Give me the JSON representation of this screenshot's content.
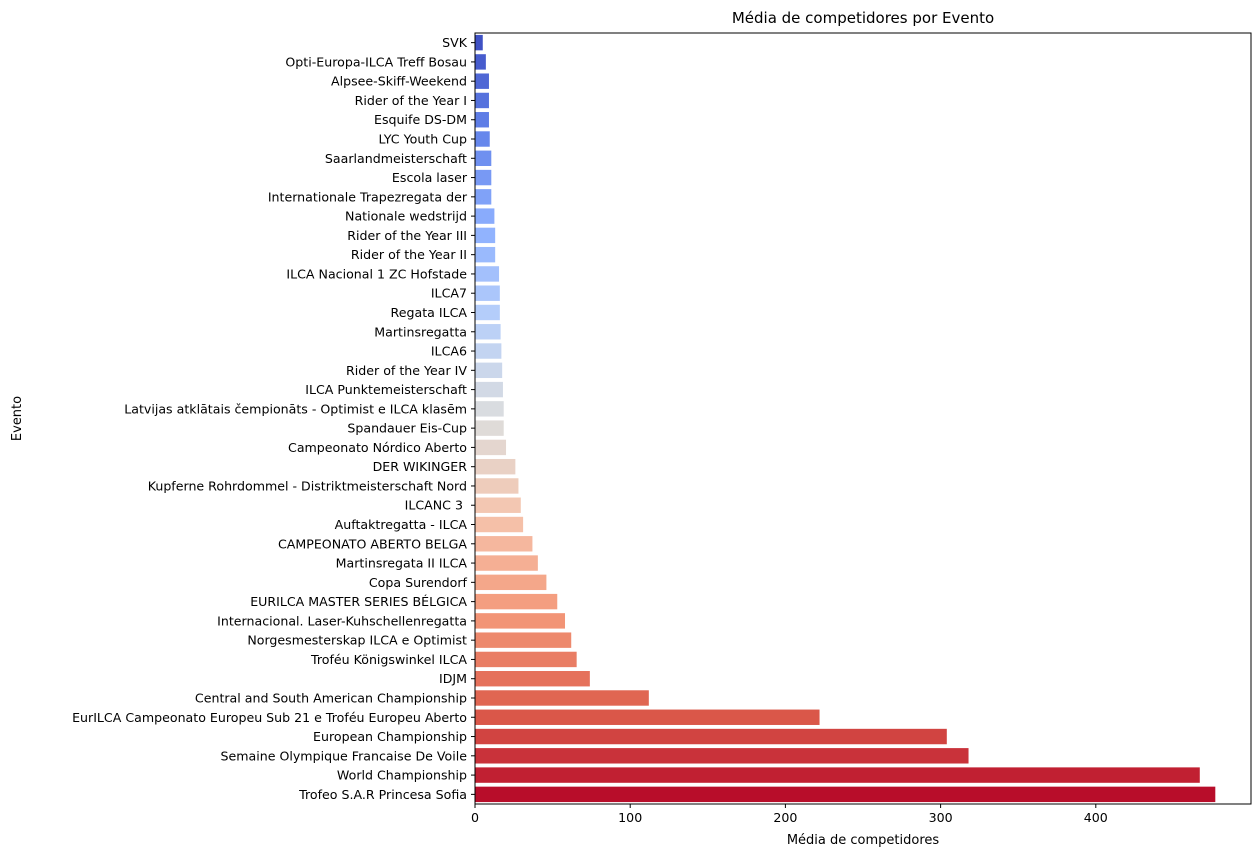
{
  "chart_data": {
    "type": "bar",
    "orientation": "horizontal",
    "title": "Média de competidores por Evento",
    "xlabel": "Média de competidores",
    "ylabel": "Evento",
    "xlim": [
      0,
      500
    ],
    "xticks": [
      0,
      100,
      200,
      300,
      400
    ],
    "grid": false,
    "legend": "none",
    "palette": "coolwarm",
    "categories": [
      "SVK",
      "Opti-Europa-ILCA Treff Bosau",
      "Alpsee-Skiff-Weekend",
      "Rider of the Year I",
      "Esquife DS-DM",
      "LYC Youth Cup",
      "Saarlandmeisterschaft",
      "Escola laser",
      "Internationale Trapezregata der",
      "Nationale wedstrijd",
      "Rider of the Year III",
      "Rider of the Year II",
      "ILCA Nacional 1 ZC Hofstade",
      "ILCA7",
      "Regata ILCA",
      "Martinsregatta",
      "ILCA6",
      "Rider of the Year IV",
      "ILCA Punktemeisterschaft",
      "Latvijas atklātais čempionāts - Optimist e ILCA klasēm",
      "Spandauer Eis-Cup",
      "Campeonato Nórdico Aberto",
      "DER WIKINGER",
      "Kupferne Rohrdommel - Distriktmeisterschaft Nord",
      "ILCANC 3 ",
      "Auftaktregatta - ILCA",
      "CAMPEONATO ABERTO BELGA",
      "Martinsregata II ILCA",
      "Copa Surendorf",
      "EURILCA MASTER SERIES BÉLGICA",
      "Internacional. Laser-Kuhschellenregatta",
      "Norgesmesterskap ILCA e Optimist",
      "Troféu Königswinkel ILCA",
      "IDJM",
      "Central and South American Championship",
      "EurILCA Campeonato Europeu Sub 21 e Troféu Europeu Aberto",
      "European Championship",
      "Semaine Olympique Francaise De Voile",
      "World Championship",
      "Trofeo S.A.R Princesa Sofia"
    ],
    "values": [
      5,
      7,
      9,
      9,
      9,
      9.5,
      10.5,
      10.5,
      10.5,
      12.5,
      13,
      13,
      15.5,
      16,
      16,
      16.5,
      17,
      17.5,
      18,
      18.5,
      18.5,
      20,
      26,
      28,
      29.5,
      31,
      37,
      40.5,
      46,
      53,
      58,
      62,
      65.5,
      74,
      112,
      222,
      304,
      318,
      467,
      477
    ]
  }
}
